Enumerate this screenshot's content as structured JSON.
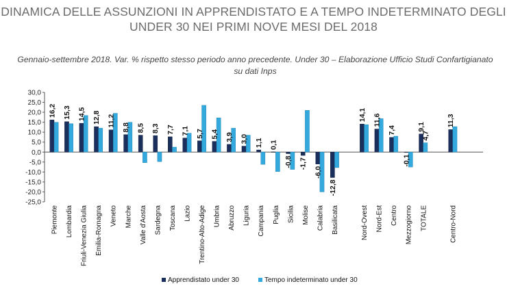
{
  "page": {
    "title": "DINAMICA DELLE ASSUNZIONI IN APPRENDISTATO E A TEMPO INDETERMINATO DEGLI UNDER 30 NEI PRIMI NOVE MESI DEL 2018",
    "subtitle": "Gennaio-settembre 2018. Var. % rispetto stesso periodo anno precedente. Under 30 – Elaborazione Ufficio Studi Confartigianato su dati Inps"
  },
  "colors": {
    "apprendistato": "#1a2f5c",
    "tempo_indeterminato": "#34a9dd"
  },
  "chart_data": {
    "type": "bar",
    "ylim": [
      -25,
      30
    ],
    "yticks": [
      -25,
      -20,
      -15,
      -10,
      -5,
      0,
      5,
      10,
      15,
      20,
      25,
      30
    ],
    "ytick_labels": [
      "-25,0",
      "-20,0",
      "-15,0",
      "-10,0",
      "-5,0",
      "0,0",
      "5,0",
      "10,0",
      "15,0",
      "20,0",
      "25,0",
      "30,0"
    ],
    "grid": false,
    "legend_position": "bottom",
    "categories": [
      "Piemonte",
      "Lombardia",
      "Friuli-Venezia Giulia",
      "Emilia-Romagna",
      "Veneto",
      "Marche",
      "Valle d'Aosta",
      "Sardegna",
      "Toscana",
      "Lazio",
      "Trentino-Alto-Adige",
      "Umbria",
      "Abruzzo",
      "Liguria",
      "Campania",
      "Puglia",
      "Sicilia",
      "Molise",
      "Calabria",
      "Basilicata",
      "",
      "Nord-Ovest",
      "Nord-Est",
      "Centro",
      "Mezzogiorno",
      "TOTALE",
      "",
      "Centro-Nord"
    ],
    "series": [
      {
        "name": "Apprendistato under 30",
        "values": [
          16.2,
          15.3,
          14.5,
          12.8,
          11.2,
          8.8,
          8.5,
          8.3,
          7.7,
          7.1,
          5.7,
          5.4,
          3.9,
          3.0,
          1.1,
          0.1,
          -0.8,
          -1.7,
          -6.0,
          -12.8,
          null,
          14.1,
          11.6,
          7.4,
          -0.1,
          9.1,
          null,
          11.3
        ],
        "labels": [
          "16,2",
          "15,3",
          "14,5",
          "12,8",
          "11,2",
          "8,8",
          "8,5",
          "8,3",
          "7,7",
          "7,1",
          "5,7",
          "5,4",
          "3,9",
          "3,0",
          "1,1",
          "0,1",
          "-0,8",
          "-1,7",
          "-6,0",
          "-12,8",
          "",
          "14,1",
          "11,6",
          "7,4",
          "-0,1",
          "9,1",
          "",
          "11,3"
        ]
      },
      {
        "name": "Tempo indeterminato under 30",
        "values": [
          15.0,
          14.3,
          18.4,
          12.0,
          19.5,
          15.0,
          -5.3,
          -4.8,
          2.5,
          9.5,
          23.5,
          17.2,
          12.0,
          8.5,
          -6.2,
          -9.8,
          -8.7,
          21.0,
          -20.0,
          -7.8,
          null,
          13.8,
          16.8,
          8.0,
          -7.5,
          4.7,
          null,
          12.8
        ],
        "labels": [
          "",
          "",
          "",
          "",
          "",
          "",
          "",
          "",
          "",
          "",
          "",
          "",
          "",
          "",
          "",
          "",
          "",
          "",
          "",
          "",
          "",
          "",
          "",
          "",
          "",
          "4,7",
          "",
          ""
        ]
      }
    ]
  }
}
